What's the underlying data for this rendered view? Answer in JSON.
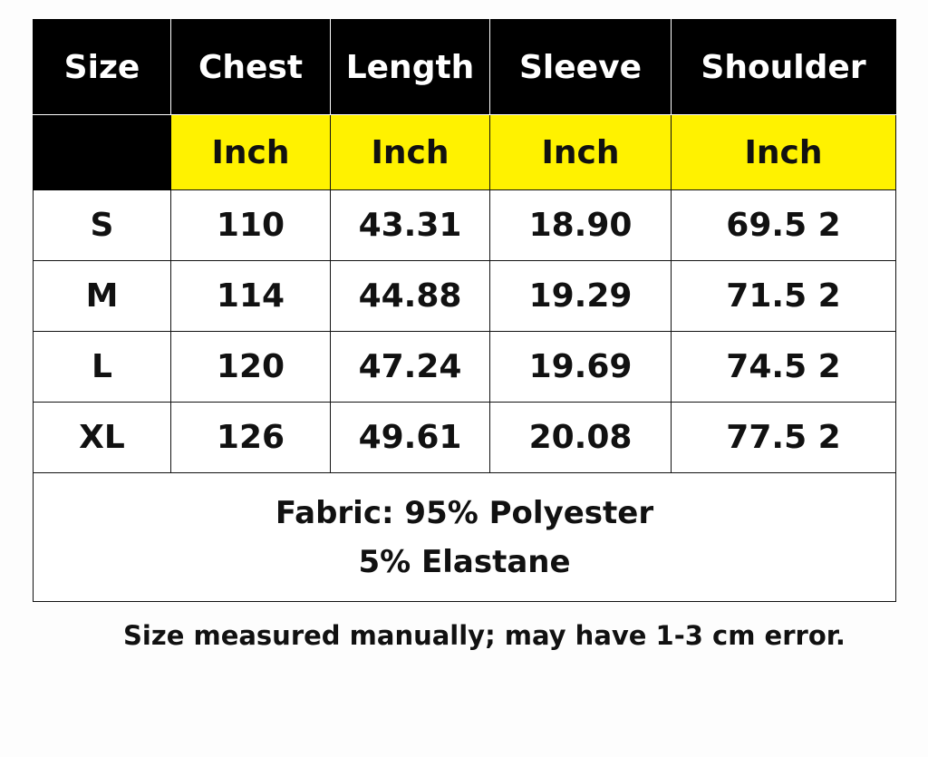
{
  "headers": [
    "Size",
    "Chest",
    "Length",
    "Sleeve",
    "Shoulder"
  ],
  "units": [
    "Inch",
    "Inch",
    "Inch",
    "Inch"
  ],
  "header_color": "#000000",
  "unit_color": "#fff200",
  "rows": [
    [
      "S",
      "110",
      "43.31",
      "18.90",
      "69.5 2"
    ],
    [
      "M",
      "114",
      "44.88",
      "19.29",
      "71.5 2"
    ],
    [
      "L",
      "120",
      "47.24",
      "19.69",
      "74.5 2"
    ],
    [
      "XL",
      "126",
      "49.61",
      "20.08",
      "77.5 2"
    ]
  ],
  "fabric_line1": "Fabric: 95% Polyester",
  "fabric_line2": "5% Elastane",
  "note": "Size measured manually; may have 1-3 cm error."
}
